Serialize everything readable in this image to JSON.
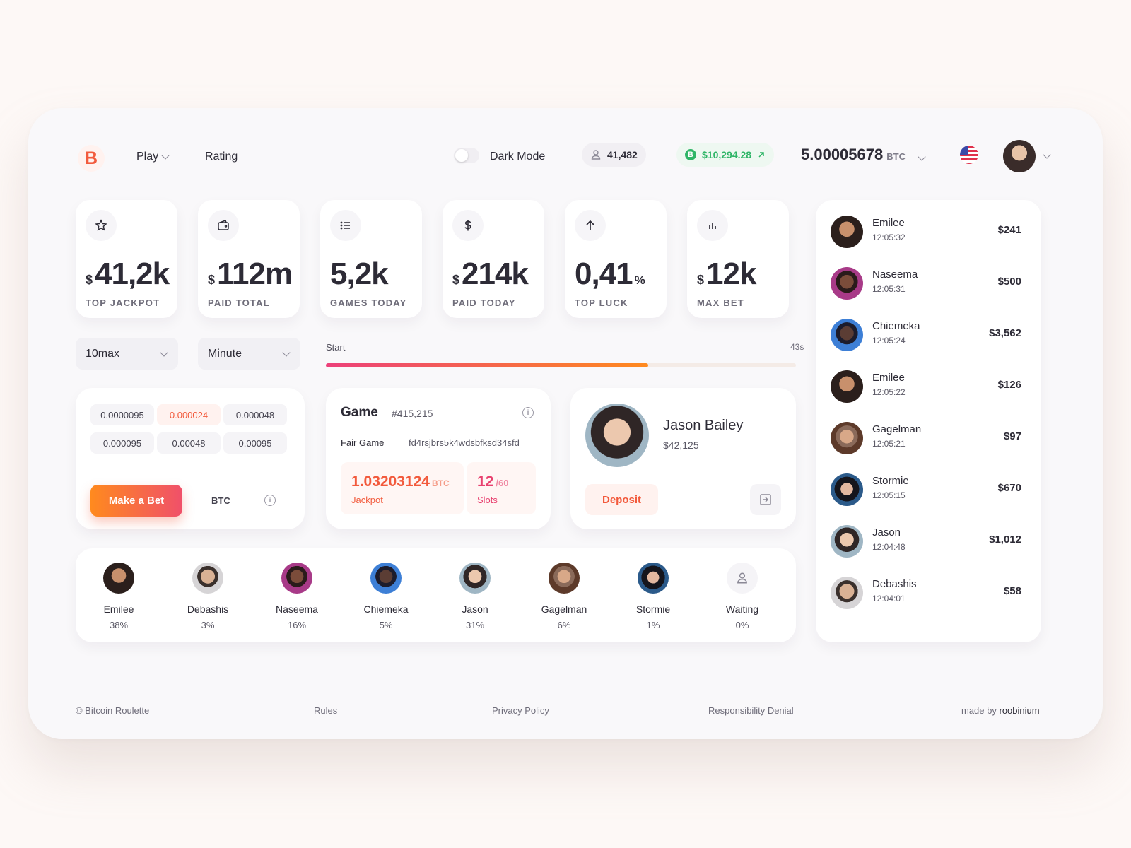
{
  "header": {
    "logo_letter": "B",
    "nav": [
      {
        "label": "Play",
        "has_dropdown": true
      },
      {
        "label": "Rating",
        "has_dropdown": false
      }
    ],
    "dark_mode_label": "Dark Mode",
    "dark_mode_on": false,
    "online_count": "41,482",
    "btc_price": "$10,294.28",
    "balance_value": "5.00005678",
    "balance_unit": "BTC",
    "flag": "us-flag-icon"
  },
  "stats": [
    {
      "icon": "star-icon",
      "prefix": "$",
      "value": "41,2k",
      "suffix": "",
      "label": "TOP JACKPOT"
    },
    {
      "icon": "wallet-icon",
      "prefix": "$",
      "value": "112m",
      "suffix": "",
      "label": "PAID TOTAL"
    },
    {
      "icon": "list-icon",
      "prefix": "",
      "value": "5,2k",
      "suffix": "",
      "label": "GAMES TODAY"
    },
    {
      "icon": "dollar-icon",
      "prefix": "$",
      "value": "214k",
      "suffix": "",
      "label": "PAID TODAY"
    },
    {
      "icon": "arrow-up-icon",
      "prefix": "",
      "value": "0,41",
      "suffix": "%",
      "label": "TOP LUCK"
    },
    {
      "icon": "bar-chart-icon",
      "prefix": "$",
      "value": "12k",
      "suffix": "",
      "label": "MAX BET"
    }
  ],
  "selects": [
    {
      "value": "10max"
    },
    {
      "value": "Minute"
    }
  ],
  "progress": {
    "start_label": "Start",
    "time_left": "43s",
    "fraction": 0.686
  },
  "bet": {
    "chips": [
      "0.0000095",
      "0.000024",
      "0.000048",
      "0.000095",
      "0.00048",
      "0.00095"
    ],
    "active_chip_index": 1,
    "make_bet_label": "Make a Bet",
    "currency": "BTC"
  },
  "game": {
    "title": "Game",
    "id": "#415,215",
    "fair_label": "Fair Game",
    "fair_hash": "fd4rsjbrs5k4wdsbfksd34sfd",
    "jackpot_value": "1.03203124",
    "jackpot_unit": "BTC",
    "jackpot_label": "Jackpot",
    "slots_value": "12",
    "slots_total": "/60",
    "slots_label": "Slots"
  },
  "user_card": {
    "name": "Jason Bailey",
    "amount": "$42,125",
    "deposit_label": "Deposit"
  },
  "players": [
    {
      "name": "Emilee",
      "percent": "38%"
    },
    {
      "name": "Debashis",
      "percent": "3%"
    },
    {
      "name": "Naseema",
      "percent": "16%"
    },
    {
      "name": "Chiemeka",
      "percent": "5%"
    },
    {
      "name": "Jason",
      "percent": "31%"
    },
    {
      "name": "Gagelman",
      "percent": "6%"
    },
    {
      "name": "Stormie",
      "percent": "1%"
    },
    {
      "name": "Waiting",
      "percent": "0%"
    }
  ],
  "recent_bets": [
    {
      "name": "Emilee",
      "time": "12:05:32",
      "amount": "$241"
    },
    {
      "name": "Naseema",
      "time": "12:05:31",
      "amount": "$500"
    },
    {
      "name": "Chiemeka",
      "time": "12:05:24",
      "amount": "$3,562"
    },
    {
      "name": "Emilee",
      "time": "12:05:22",
      "amount": "$126"
    },
    {
      "name": "Gagelman",
      "time": "12:05:21",
      "amount": "$97"
    },
    {
      "name": "Stormie",
      "time": "12:05:15",
      "amount": "$670"
    },
    {
      "name": "Jason",
      "time": "12:04:48",
      "amount": "$1,012"
    },
    {
      "name": "Debashis",
      "time": "12:04:01",
      "amount": "$58"
    }
  ],
  "footer": {
    "copyright": "© Bitcoin Roulette",
    "rules": "Rules",
    "privacy": "Privacy Policy",
    "denial": "Responsibility Denial",
    "made_by_prefix": "made by",
    "made_by_name": "roobinium"
  },
  "colors": {
    "accent": "#f25a3c",
    "green": "#2fb567",
    "pink": "#e8416f"
  }
}
